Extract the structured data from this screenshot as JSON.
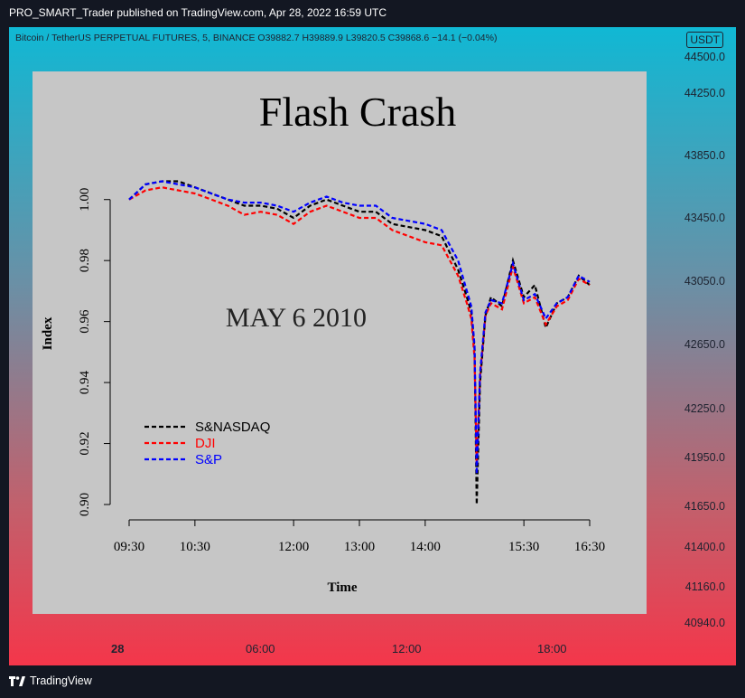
{
  "header": {
    "published_by": "PRO_SMART_Trader published on TradingView.com, Apr 28, 2022 16:59 UTC"
  },
  "symbol_bar": {
    "text": "Bitcoin / TetherUS PERPETUAL FUTURES, 5, BINANCE  O39882.7  H39889.9  L39820.5  C39868.6  −14.1 (−0.04%)"
  },
  "price_axis": {
    "currency": "USDT",
    "labels": [
      "44500.0",
      "44250.0",
      "43850.0",
      "43450.0",
      "43050.0",
      "42650.0",
      "42250.0",
      "41950.0",
      "41650.0",
      "41400.0",
      "41160.0",
      "40940.0"
    ]
  },
  "time_axis": {
    "labels": [
      "28",
      "06:00",
      "12:00",
      "18:00"
    ]
  },
  "footer": {
    "brand": "TradingView"
  },
  "colors": {
    "gradient_top": "#10b8d4",
    "gradient_bottom": "#f4364a",
    "panel": "#c6c6c6",
    "series_nasdaq": "#000000",
    "series_dji": "#ff0000",
    "series_sp": "#0000ff"
  },
  "chart_data": {
    "type": "line",
    "title": "Flash Crash",
    "annotation": "MAY 6 2010",
    "xlabel": "Time",
    "ylabel": "Index",
    "x_ticks": [
      "09:30",
      "10:30",
      "12:00",
      "13:00",
      "14:00",
      "15:30",
      "16:30"
    ],
    "y_ticks": [
      "0.90",
      "0.92",
      "0.94",
      "0.96",
      "0.98",
      "1.00"
    ],
    "ylim": [
      0.9,
      1.01
    ],
    "legend_position": "bottom-left",
    "grid": false,
    "x": [
      "09:30",
      "09:45",
      "10:00",
      "10:15",
      "10:30",
      "10:45",
      "11:00",
      "11:15",
      "11:30",
      "11:45",
      "12:00",
      "12:15",
      "12:30",
      "12:45",
      "13:00",
      "13:15",
      "13:30",
      "13:45",
      "14:00",
      "14:15",
      "14:30",
      "14:38",
      "14:42",
      "14:45",
      "14:47",
      "14:50",
      "14:55",
      "15:00",
      "15:10",
      "15:20",
      "15:30",
      "15:40",
      "15:50",
      "16:00",
      "16:10",
      "16:20",
      "16:30"
    ],
    "series": [
      {
        "name": "S&NASDAQ",
        "color": "#000000",
        "values": [
          1.0,
          1.005,
          1.006,
          1.006,
          1.004,
          1.002,
          1.0,
          0.998,
          0.998,
          0.997,
          0.994,
          0.998,
          1.0,
          0.998,
          0.996,
          0.996,
          0.992,
          0.991,
          0.99,
          0.988,
          0.977,
          0.968,
          0.963,
          0.951,
          0.9,
          0.94,
          0.962,
          0.968,
          0.965,
          0.98,
          0.968,
          0.972,
          0.958,
          0.966,
          0.968,
          0.975,
          0.972
        ]
      },
      {
        "name": "DJI",
        "color": "#ff0000",
        "values": [
          1.0,
          1.003,
          1.004,
          1.003,
          1.002,
          1.0,
          0.998,
          0.995,
          0.996,
          0.995,
          0.992,
          0.996,
          0.998,
          0.996,
          0.994,
          0.994,
          0.99,
          0.988,
          0.986,
          0.985,
          0.975,
          0.966,
          0.961,
          0.948,
          0.913,
          0.942,
          0.962,
          0.966,
          0.964,
          0.978,
          0.966,
          0.968,
          0.959,
          0.965,
          0.967,
          0.974,
          0.972
        ]
      },
      {
        "name": "S&P",
        "color": "#0000ff",
        "values": [
          1.0,
          1.005,
          1.006,
          1.005,
          1.004,
          1.002,
          1.0,
          0.999,
          0.999,
          0.998,
          0.996,
          0.999,
          1.001,
          0.999,
          0.998,
          0.998,
          0.994,
          0.993,
          0.992,
          0.99,
          0.98,
          0.97,
          0.965,
          0.952,
          0.91,
          0.943,
          0.963,
          0.967,
          0.966,
          0.979,
          0.967,
          0.969,
          0.961,
          0.966,
          0.968,
          0.975,
          0.973
        ]
      }
    ]
  }
}
